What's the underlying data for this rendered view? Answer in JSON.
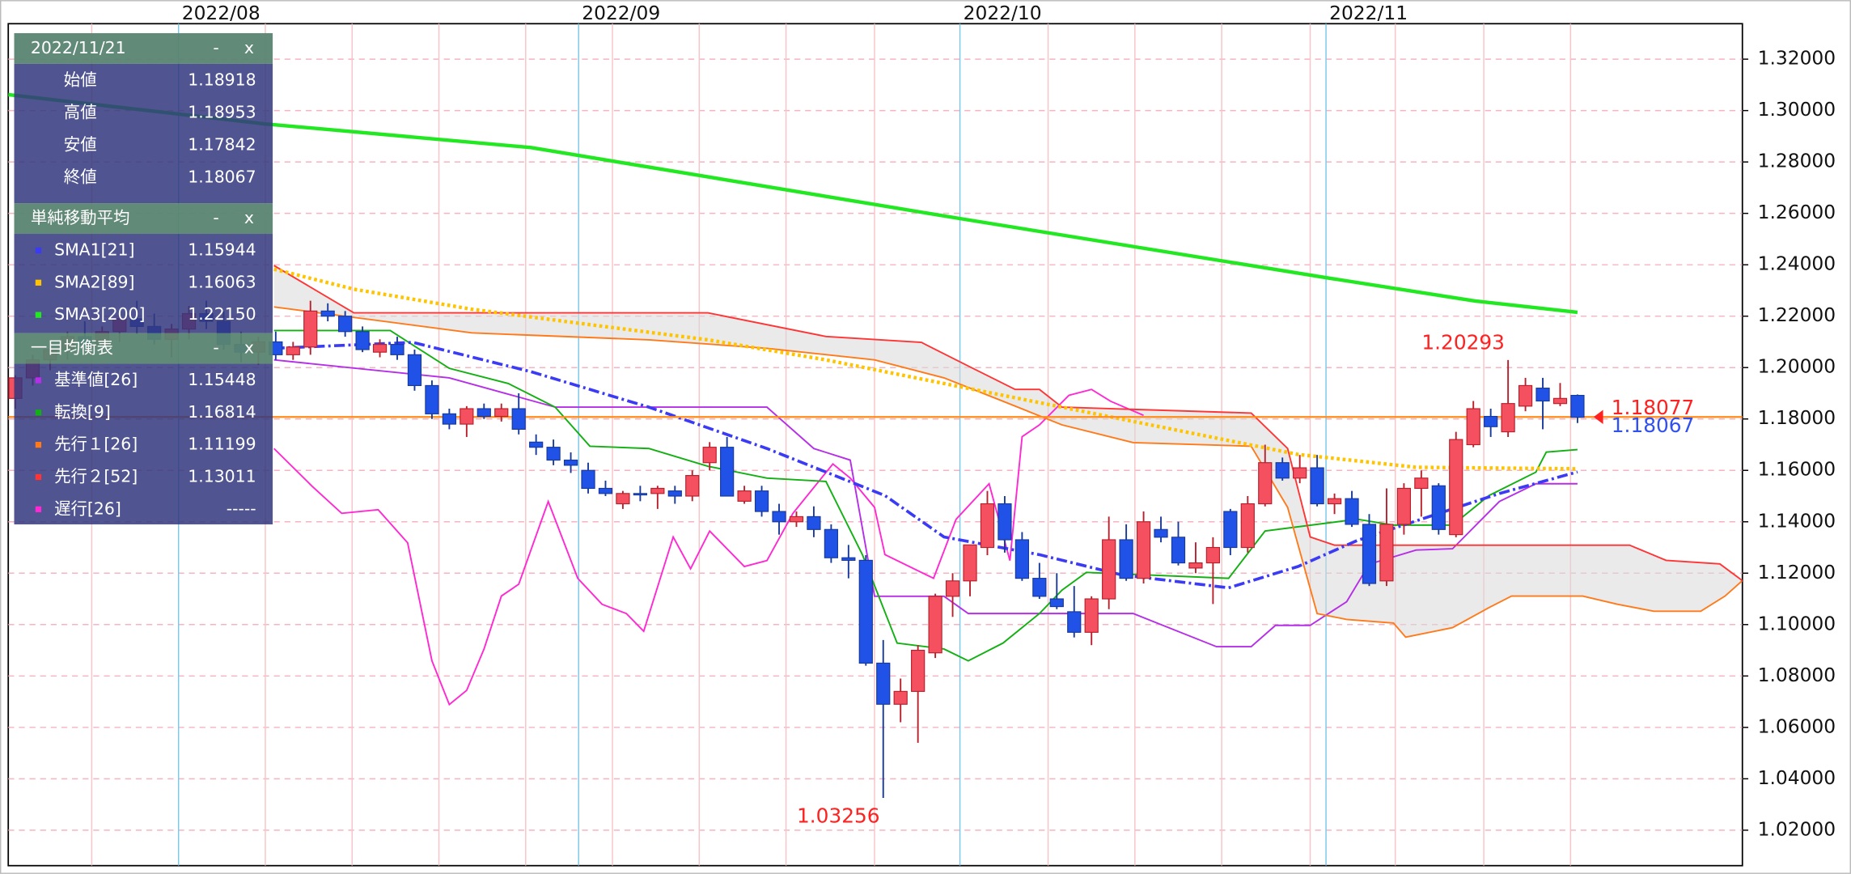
{
  "chart_data": {
    "type": "candlestick",
    "xlim": [
      -0.41,
      99.5
    ],
    "ylim": [
      1.0062,
      1.3338
    ],
    "xticks": [
      {
        "value": 9.4,
        "label": "2022/08"
      },
      {
        "value": 32.45,
        "label": "2022/09"
      },
      {
        "value": 54.42,
        "label": "2022/10"
      },
      {
        "value": 75.51,
        "label": "2022/11"
      }
    ],
    "xminorticks": [
      4.4,
      14.4,
      19.4,
      24.4,
      29.4,
      34.4,
      39.4,
      44.4,
      49.5,
      59.5,
      64.5,
      69.5,
      74.6,
      79.5,
      84.6,
      89.6
    ],
    "yticks": [
      {
        "value": 1.02,
        "label": "1.02000"
      },
      {
        "value": 1.04,
        "label": "1.04000"
      },
      {
        "value": 1.06,
        "label": "1.06000"
      },
      {
        "value": 1.08,
        "label": "1.08000"
      },
      {
        "value": 1.1,
        "label": "1.10000"
      },
      {
        "value": 1.12,
        "label": "1.12000"
      },
      {
        "value": 1.14,
        "label": "1.14000"
      },
      {
        "value": 1.16,
        "label": "1.16000"
      },
      {
        "value": 1.18,
        "label": "1.18000"
      },
      {
        "value": 1.2,
        "label": "1.20000"
      },
      {
        "value": 1.22,
        "label": "1.22000"
      },
      {
        "value": 1.24,
        "label": "1.24000"
      },
      {
        "value": 1.26,
        "label": "1.26000"
      },
      {
        "value": 1.28,
        "label": "1.28000"
      },
      {
        "value": 1.3,
        "label": "1.30000"
      },
      {
        "value": 1.32,
        "label": "1.32000"
      }
    ],
    "grid": true,
    "candles": {
      "up_color": "#f5505f",
      "down_color": "#2052e8",
      "x": [
        0,
        1,
        2,
        3,
        4,
        5,
        6,
        7,
        8,
        9,
        10,
        11,
        12,
        13,
        14,
        15,
        16,
        17,
        18,
        19,
        20,
        21,
        22,
        23,
        24,
        25,
        26,
        27,
        28,
        29,
        30,
        31,
        32,
        33,
        34,
        35,
        36,
        37,
        38,
        39,
        40,
        41,
        42,
        43,
        44,
        45,
        46,
        47,
        48,
        49,
        50,
        51,
        52,
        53,
        54,
        55,
        56,
        57,
        58,
        59,
        60,
        61,
        62,
        63,
        64,
        65,
        66,
        67,
        68,
        69,
        70,
        71,
        72,
        73,
        74,
        75,
        76,
        77,
        78,
        79,
        80,
        81,
        82,
        83,
        84,
        85,
        86,
        87,
        88,
        89,
        90
      ],
      "open": [
        1.188,
        1.196,
        1.203,
        1.207,
        1.212,
        1.209,
        1.214,
        1.219,
        1.216,
        1.211,
        1.215,
        1.221,
        1.218,
        1.209,
        1.206,
        1.21,
        1.205,
        1.208,
        1.222,
        1.22,
        1.214,
        1.206,
        1.209,
        1.205,
        1.193,
        1.182,
        1.178,
        1.184,
        1.181,
        1.184,
        1.171,
        1.169,
        1.164,
        1.16,
        1.153,
        1.147,
        1.151,
        1.151,
        1.152,
        1.15,
        1.163,
        1.169,
        1.148,
        1.152,
        1.144,
        1.14,
        1.142,
        1.137,
        1.126,
        1.125,
        1.085,
        1.069,
        1.074,
        1.089,
        1.111,
        1.117,
        1.13,
        1.147,
        1.133,
        1.118,
        1.11,
        1.105,
        1.097,
        1.11,
        1.133,
        1.118,
        1.137,
        1.134,
        1.122,
        1.124,
        1.144,
        1.13,
        1.147,
        1.163,
        1.157,
        1.161,
        1.147,
        1.149,
        1.139,
        1.117,
        1.139,
        1.153,
        1.154,
        1.135,
        1.17,
        1.181,
        1.175,
        1.185,
        1.192,
        1.186,
        1.18918
      ],
      "high": [
        1.197,
        1.205,
        1.21,
        1.214,
        1.218,
        1.216,
        1.222,
        1.226,
        1.221,
        1.217,
        1.224,
        1.226,
        1.222,
        1.214,
        1.212,
        1.214,
        1.21,
        1.226,
        1.225,
        1.222,
        1.216,
        1.211,
        1.212,
        1.207,
        1.195,
        1.184,
        1.185,
        1.186,
        1.186,
        1.19,
        1.174,
        1.172,
        1.167,
        1.163,
        1.156,
        1.152,
        1.154,
        1.154,
        1.154,
        1.16,
        1.171,
        1.173,
        1.154,
        1.154,
        1.147,
        1.144,
        1.146,
        1.139,
        1.131,
        1.127,
        1.094,
        1.079,
        1.092,
        1.112,
        1.12,
        1.131,
        1.152,
        1.15,
        1.136,
        1.124,
        1.12,
        1.115,
        1.111,
        1.142,
        1.139,
        1.144,
        1.142,
        1.14,
        1.132,
        1.134,
        1.145,
        1.15,
        1.17,
        1.165,
        1.166,
        1.166,
        1.151,
        1.152,
        1.143,
        1.153,
        1.155,
        1.16,
        1.155,
        1.175,
        1.187,
        1.184,
        1.20293,
        1.196,
        1.196,
        1.194,
        1.18953
      ],
      "low": [
        1.184,
        1.193,
        1.199,
        1.203,
        1.206,
        1.205,
        1.21,
        1.213,
        1.209,
        1.204,
        1.211,
        1.215,
        1.207,
        1.202,
        1.201,
        1.203,
        1.203,
        1.205,
        1.218,
        1.212,
        1.206,
        1.204,
        1.203,
        1.191,
        1.18,
        1.176,
        1.173,
        1.18,
        1.179,
        1.174,
        1.166,
        1.162,
        1.159,
        1.151,
        1.15,
        1.145,
        1.148,
        1.145,
        1.147,
        1.148,
        1.16,
        1.15,
        1.147,
        1.142,
        1.135,
        1.138,
        1.134,
        1.124,
        1.118,
        1.084,
        1.03256,
        1.062,
        1.054,
        1.087,
        1.103,
        1.111,
        1.127,
        1.128,
        1.117,
        1.11,
        1.106,
        1.095,
        1.092,
        1.106,
        1.117,
        1.116,
        1.132,
        1.123,
        1.12,
        1.108,
        1.127,
        1.128,
        1.146,
        1.156,
        1.155,
        1.146,
        1.143,
        1.138,
        1.115,
        1.115,
        1.135,
        1.142,
        1.135,
        1.134,
        1.169,
        1.173,
        1.173,
        1.183,
        1.176,
        1.185,
        1.17842
      ],
      "close": [
        1.196,
        1.203,
        1.207,
        1.212,
        1.209,
        1.214,
        1.219,
        1.216,
        1.211,
        1.215,
        1.221,
        1.218,
        1.209,
        1.206,
        1.21,
        1.205,
        1.208,
        1.222,
        1.22,
        1.214,
        1.207,
        1.209,
        1.205,
        1.193,
        1.182,
        1.178,
        1.184,
        1.181,
        1.184,
        1.176,
        1.169,
        1.164,
        1.162,
        1.153,
        1.151,
        1.151,
        1.151,
        1.153,
        1.15,
        1.158,
        1.169,
        1.15,
        1.152,
        1.144,
        1.14,
        1.142,
        1.137,
        1.126,
        1.125,
        1.085,
        1.069,
        1.074,
        1.09,
        1.111,
        1.117,
        1.131,
        1.147,
        1.133,
        1.118,
        1.111,
        1.107,
        1.097,
        1.11,
        1.133,
        1.118,
        1.14,
        1.134,
        1.124,
        1.124,
        1.13,
        1.13,
        1.147,
        1.163,
        1.157,
        1.161,
        1.147,
        1.149,
        1.139,
        1.116,
        1.139,
        1.153,
        1.157,
        1.137,
        1.172,
        1.184,
        1.177,
        1.186,
        1.193,
        1.187,
        1.188,
        1.18067
      ]
    },
    "cloud": {
      "between": [
        5,
        6
      ],
      "color": "#d9d9d9"
    },
    "series": [
      {
        "name": "SMA1[21]",
        "color": "#3b3bf5",
        "style": "dashdot",
        "width": 2.5,
        "panel_value": "1.15944",
        "x": [
          14.9,
          22.9,
          29.7,
          36.5,
          43.3,
          50.1,
          53.5,
          59,
          63.7,
          69.9,
          73.9,
          77.3,
          81.0,
          85.5,
          90
        ],
        "values": [
          1.2075,
          1.2098,
          1.1984,
          1.1846,
          1.1685,
          1.1502,
          1.1341,
          1.1272,
          1.1194,
          1.1143,
          1.1226,
          1.1327,
          1.141,
          1.151,
          1.1594
        ]
      },
      {
        "name": "SMA2[89]",
        "color": "#ffc400",
        "style": "dotted",
        "width": 3,
        "panel_value": "1.16063",
        "x": [
          14.9,
          19.5,
          26.3,
          33.1,
          39.9,
          46.7,
          53.5,
          60.3,
          67.1,
          73.9,
          80.7,
          90
        ],
        "values": [
          1.2383,
          1.2305,
          1.2227,
          1.2167,
          1.2108,
          1.203,
          1.1938,
          1.1846,
          1.1754,
          1.1662,
          1.1612,
          1.1606
        ]
      },
      {
        "name": "SMA3[200]",
        "color": "#22e822",
        "style": "solid",
        "width": 3,
        "panel_value": "1.22150",
        "x": [
          -0.41,
          14.4,
          29.7,
          54.4,
          75.5,
          84.1,
          90
        ],
        "values": [
          1.3062,
          1.2948,
          1.2856,
          1.258,
          1.235,
          1.2259,
          1.2215
        ]
      },
      {
        "name": "基準値[26]",
        "color": "#b52ee8",
        "style": "solid",
        "width": 1.3,
        "panel_value": "1.15448",
        "x": [
          14.9,
          25,
          31.1,
          43.3,
          46,
          48.1,
          49.5,
          53.5,
          54.9,
          64.4,
          69.2,
          71.2,
          72.6,
          74.6,
          76.7,
          78,
          80.7,
          82.8,
          85.5,
          87.6,
          90
        ],
        "values": [
          1.203,
          1.196,
          1.1846,
          1.1846,
          1.1685,
          1.164,
          1.111,
          1.111,
          1.1043,
          1.1043,
          1.0914,
          1.0914,
          1.0997,
          1.0997,
          1.1089,
          1.1235,
          1.129,
          1.1295,
          1.1479,
          1.1548,
          1.1548
        ]
      },
      {
        "name": "転換[9]",
        "color": "#12b012",
        "style": "solid",
        "width": 1.3,
        "panel_value": "1.16814",
        "x": [
          14.9,
          21.6,
          25,
          28.4,
          31.1,
          33.1,
          36.5,
          39.9,
          43.3,
          46.7,
          48.8,
          50.8,
          53.5,
          54.9,
          56.9,
          59,
          60.3,
          61.7,
          69.9,
          72,
          77.3,
          79.4,
          82.8,
          84.9,
          87.6,
          88.2,
          90
        ],
        "values": [
          1.2144,
          1.2144,
          1.1997,
          1.1938,
          1.1846,
          1.1694,
          1.1685,
          1.1616,
          1.157,
          1.1557,
          1.1272,
          1.0928,
          1.0905,
          1.0859,
          1.0928,
          1.1043,
          1.1134,
          1.1203,
          1.118,
          1.1364,
          1.141,
          1.1387,
          1.1387,
          1.1502,
          1.1593,
          1.1671,
          1.1681
        ]
      },
      {
        "name": "先行１[26]",
        "color": "#ff7a1a",
        "style": "solid",
        "width": 1.3,
        "panel_value": "1.11199",
        "x": [
          14.9,
          26.3,
          36.5,
          43.3,
          49.5,
          53.5,
          56.9,
          60.3,
          64.4,
          71.2,
          73.3,
          75,
          76.7,
          79.4,
          80.1,
          82.8,
          84.9,
          86.2,
          90.3,
          92.3,
          94.4,
          97.1,
          98.5,
          99.5
        ],
        "values": [
          1.2236,
          1.2135,
          1.2108,
          1.2075,
          1.203,
          1.196,
          1.1869,
          1.1777,
          1.1708,
          1.1694,
          1.1456,
          1.1043,
          1.102,
          1.1006,
          1.0951,
          1.0988,
          1.1066,
          1.1111,
          1.1111,
          1.1079,
          1.1052,
          1.1052,
          1.1111,
          1.1171
        ]
      },
      {
        "name": "先行２[52]",
        "color": "#ff3535",
        "style": "solid",
        "width": 1.3,
        "panel_value": "1.13011",
        "x": [
          14.9,
          19.5,
          39.9,
          46.7,
          52.2,
          54.9,
          57.6,
          59,
          60.3,
          71.2,
          73.3,
          74.6,
          76,
          93,
          95.1,
          98.2,
          99.5
        ],
        "values": [
          1.2397,
          1.2213,
          1.2213,
          1.2121,
          1.2098,
          1.2006,
          1.1915,
          1.1915,
          1.1846,
          1.1823,
          1.1685,
          1.1341,
          1.1309,
          1.1309,
          1.125,
          1.1236,
          1.1171
        ]
      },
      {
        "name": "遅行[26]",
        "color": "#ff28d2",
        "style": "solid",
        "width": 1.3,
        "panel_value": "-----",
        "x": [
          14.9,
          17.1,
          18.8,
          20.9,
          22.6,
          24,
          25,
          26,
          27,
          28,
          29,
          30.7,
          32.4,
          33.8,
          35.2,
          36.2,
          37.9,
          38.9,
          40,
          42,
          43.3,
          44.8,
          47.1,
          48.1,
          49.5,
          50.1,
          52.9,
          54.2,
          56.1,
          57.3,
          58,
          59,
          60.7,
          62,
          63.1,
          65
        ],
        "values": [
          1.1685,
          1.1538,
          1.1433,
          1.1447,
          1.1318,
          1.0859,
          1.0689,
          1.0744,
          1.0905,
          1.1111,
          1.1157,
          1.1479,
          1.118,
          1.1079,
          1.1043,
          1.0974,
          1.1341,
          1.1217,
          1.1364,
          1.1226,
          1.1249,
          1.1433,
          1.1625,
          1.157,
          1.1456,
          1.1272,
          1.118,
          1.141,
          1.1548,
          1.1249,
          1.1731,
          1.1777,
          1.1892,
          1.1915,
          1.1869,
          1.1814
        ]
      }
    ],
    "annotations": [
      {
        "x": 86,
        "y": 1.20293,
        "position": "above",
        "color": "#ff2020"
      },
      {
        "x": 50,
        "y": 1.03256,
        "position": "below",
        "color": "#ff2020"
      }
    ],
    "price_lines": [
      {
        "value": 1.18077,
        "color": "#ff2020",
        "line_color": "#ff8c1a"
      },
      {
        "value": 1.18067,
        "color": "#3050f0"
      }
    ],
    "panel": {
      "date": "2022/11/21",
      "ohlc_rows": [
        {
          "label": "始値",
          "value": "1.18918"
        },
        {
          "label": "高値",
          "value": "1.18953"
        },
        {
          "label": "安値",
          "value": "1.17842"
        },
        {
          "label": "終値",
          "value": "1.18067"
        }
      ],
      "sma_title": "単純移動平均",
      "ichimoku_title": "一目均衡表",
      "buttons": [
        "-",
        "x"
      ]
    }
  }
}
